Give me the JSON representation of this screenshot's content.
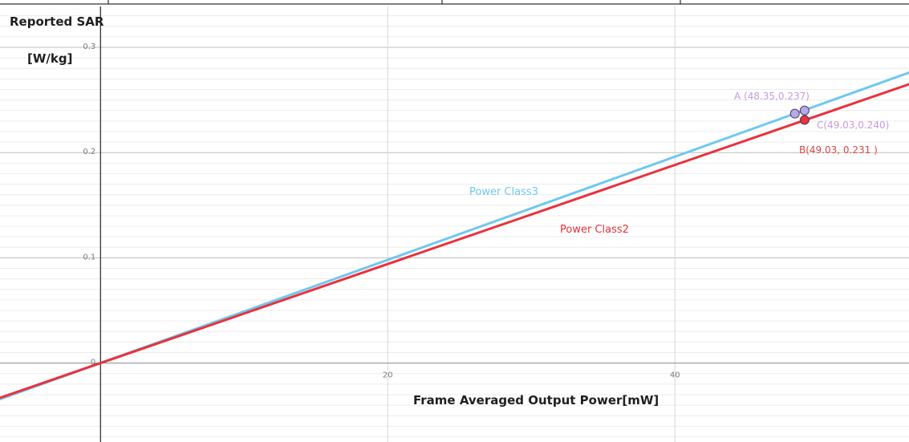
{
  "chart_data": {
    "type": "line",
    "xlabel": "Frame Averaged Output Power[mW]",
    "ylabel_line1": "Reported SAR",
    "ylabel_line2": "[W/kg]",
    "xlim": [
      -7,
      56.3
    ],
    "ylim": [
      -0.075,
      0.345
    ],
    "x_ticks": [
      {
        "value": 0,
        "label": "0"
      },
      {
        "value": 20,
        "label": "20"
      },
      {
        "value": 40,
        "label": "40"
      }
    ],
    "y_ticks": [
      {
        "value": 0.1,
        "label": "0.1"
      },
      {
        "value": 0.2,
        "label": "0.2"
      },
      {
        "value": 0.3,
        "label": "0.3"
      }
    ],
    "grid": true,
    "colors": {
      "power_class3": "#6fc7ef",
      "power_class2": "#e8323d",
      "marker_a_c": "#b7a9e9",
      "point_label_a_c": "#c59be0",
      "point_label_b": "#d8474c"
    },
    "series": [
      {
        "name": "Power Class3",
        "x": [
          -7,
          0,
          56.3
        ],
        "y": [
          -0.0343,
          0,
          0.276
        ]
      },
      {
        "name": "Power Class2",
        "x": [
          -7,
          0,
          56.3
        ],
        "y": [
          -0.033,
          0,
          0.265
        ]
      }
    ],
    "points": [
      {
        "id": "A",
        "label": "A (48.35,0.237)",
        "x": 48.35,
        "y": 0.237
      },
      {
        "id": "C",
        "label": "C(49.03,0.240)",
        "x": 49.03,
        "y": 0.24
      },
      {
        "id": "B",
        "label": "B(49.03, 0.231 )",
        "x": 49.03,
        "y": 0.231
      }
    ]
  }
}
